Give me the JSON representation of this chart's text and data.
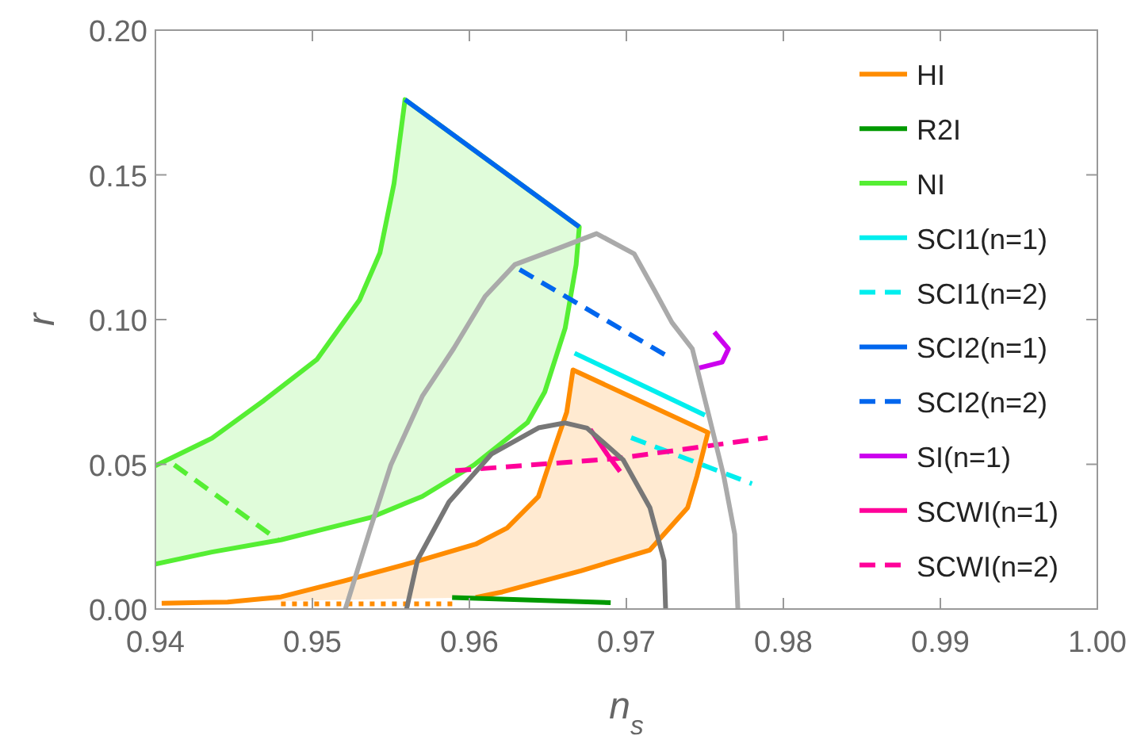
{
  "chart_data": {
    "type": "line",
    "xlabel": "n$_{s}$",
    "ylabel": "r",
    "xlim": [
      0.94,
      1.0
    ],
    "ylim": [
      0,
      0.2
    ],
    "xticks": [
      0.94,
      0.95,
      0.96,
      0.97,
      0.98,
      0.99,
      {
        "value": 1.0,
        "label": "1.00"
      }
    ],
    "yticks": [
      {
        "value": 0,
        "label": "0.00"
      },
      0.05,
      {
        "value": 0.1,
        "label": "0.10"
      },
      0.15,
      {
        "value": 0.2,
        "label": "0.20"
      }
    ],
    "legend": "right",
    "grid": false,
    "series": [
      {
        "name": "HI",
        "type": "area",
        "color": "#ff8c00",
        "x": [
          0.9404,
          0.9446,
          0.948,
          0.952,
          0.957,
          0.9604,
          0.9624,
          0.9644,
          0.9654,
          0.9662,
          0.9666,
          0.9752,
          0.9745,
          0.9739,
          0.9715,
          0.9671,
          0.9621,
          0.9604
        ],
        "values": [
          0.002,
          0.0024,
          0.0042,
          0.0097,
          0.017,
          0.0224,
          0.028,
          0.0389,
          0.0553,
          0.068,
          0.0826,
          0.061,
          0.046,
          0.035,
          0.0204,
          0.0132,
          0.0059,
          0.004
        ]
      },
      {
        "name": "R2I",
        "color": "#009900",
        "x": [
          0.9589,
          0.969
        ],
        "values": [
          0.004,
          0.0022
        ]
      },
      {
        "name": "NI",
        "type": "area",
        "color": "#55ee33",
        "x": [
          0.94,
          0.9436,
          0.9469,
          0.9503,
          0.953,
          0.9543,
          0.9552,
          0.9559,
          0.967,
          0.9668,
          0.9661,
          0.9648,
          0.9637,
          0.9603,
          0.957,
          0.9537,
          0.9503,
          0.948,
          0.9436,
          0.94
        ],
        "values": [
          0.0495,
          0.059,
          0.072,
          0.0863,
          0.1068,
          0.123,
          0.147,
          0.176,
          0.132,
          0.119,
          0.097,
          0.075,
          0.0644,
          0.0498,
          0.0389,
          0.0316,
          0.027,
          0.0239,
          0.0197,
          0.0155
        ]
      },
      {
        "name": "SCI1(n=1)",
        "color": "#00eeee",
        "x": [
          0.9667,
          0.975
        ],
        "values": [
          0.0884,
          0.067
        ]
      },
      {
        "name": "SCI1(n=2)",
        "color": "#00eeee",
        "line_style": "dashed",
        "x": [
          0.9703,
          0.978
        ],
        "values": [
          0.0592,
          0.0433
        ]
      },
      {
        "name": "SCI2(n=1)",
        "color": "#0066ee",
        "x": [
          0.9559,
          0.967
        ],
        "values": [
          0.176,
          0.132
        ]
      },
      {
        "name": "SCI2(n=2)",
        "color": "#0066ee",
        "line_style": "dashed",
        "x": [
          0.9632,
          0.9725
        ],
        "values": [
          0.1173,
          0.0877
        ]
      },
      {
        "name": "SI(n=1)",
        "color": "#cc00ee",
        "x": [
          0.9756,
          0.9765,
          0.9761,
          0.9745
        ],
        "values": [
          0.0957,
          0.0899,
          0.0853,
          0.0831
        ]
      },
      {
        "name": "SCWI(n=1)",
        "color": "#ff0099",
        "x": [
          0.9677,
          0.9688,
          0.9696
        ],
        "values": [
          0.0621,
          0.0533,
          0.0475
        ]
      },
      {
        "name": "SCWI(n=2)",
        "color": "#ff0099",
        "line_style": "dashed",
        "x": [
          0.9591,
          0.9694,
          0.979
        ],
        "values": [
          0.0478,
          0.052,
          0.0592
        ]
      },
      {
        "color": "#55ee33",
        "line_style": "dashed",
        "x": [
          0.9412,
          0.9478
        ],
        "values": [
          0.0498,
          0.0239
        ]
      },
      {
        "color": "#ff8c00",
        "line_style": "dotted",
        "x": [
          0.948,
          0.9592
        ],
        "values": [
          0.0018,
          0.0018
        ]
      },
      {
        "color": "#aaaaaa",
        "x": [
          0.9521,
          0.9537,
          0.955,
          0.957,
          0.959,
          0.961,
          0.9629,
          0.9657,
          0.9681,
          0.9705,
          0.9718,
          0.9729,
          0.9742,
          0.9752,
          0.9762,
          0.9769,
          0.9771
        ],
        "values": [
          0,
          0.0279,
          0.0498,
          0.0735,
          0.09,
          0.108,
          0.119,
          0.1247,
          0.1297,
          0.1227,
          0.11,
          0.099,
          0.0899,
          0.068,
          0.046,
          0.0259,
          0
        ]
      },
      {
        "color": "#777777",
        "x": [
          0.956,
          0.9567,
          0.9587,
          0.9614,
          0.9644,
          0.9661,
          0.9675,
          0.9698,
          0.9715,
          0.9724,
          0.9725
        ],
        "values": [
          0,
          0.017,
          0.037,
          0.0535,
          0.0626,
          0.0643,
          0.0625,
          0.0515,
          0.035,
          0.0168,
          0
        ]
      }
    ]
  }
}
